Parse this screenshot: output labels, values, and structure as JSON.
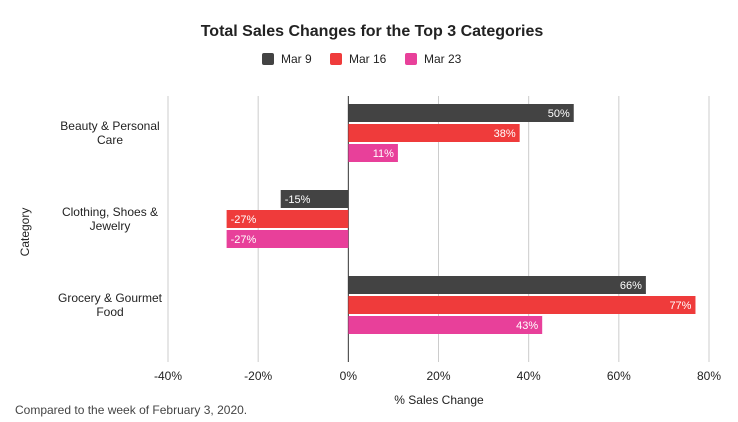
{
  "chart_data": {
    "type": "bar",
    "orientation": "horizontal",
    "title": "Total Sales Changes for the Top 3 Categories",
    "categories": [
      [
        "Beauty & Personal",
        "Care"
      ],
      [
        "Clothing, Shoes &",
        "Jewelry"
      ],
      [
        "Grocery & Gourmet",
        "Food"
      ]
    ],
    "series": [
      {
        "name": "Mar 9",
        "color": "#434343",
        "values": [
          50,
          -15,
          66
        ],
        "labels": [
          "50%",
          "-15%",
          "66%"
        ]
      },
      {
        "name": "Mar 16",
        "color": "#ef3b3b",
        "values": [
          38,
          -27,
          77
        ],
        "labels": [
          "38%",
          "-27%",
          "77%"
        ]
      },
      {
        "name": "Mar 23",
        "color": "#e8409a",
        "values": [
          11,
          -27,
          43
        ],
        "labels": [
          "11%",
          "-27%",
          "43%"
        ]
      }
    ],
    "xlim": [
      -40,
      80
    ],
    "xticks": [
      -40,
      -20,
      0,
      20,
      40,
      60,
      80
    ],
    "xtick_labels": [
      "-40%",
      "-20%",
      "0%",
      "20%",
      "40%",
      "60%",
      "80%"
    ],
    "xlabel": "% Sales Change",
    "ylabel": "Category",
    "grid": true,
    "legend_position": "top"
  },
  "footnote": "Compared to the week of February 3, 2020."
}
